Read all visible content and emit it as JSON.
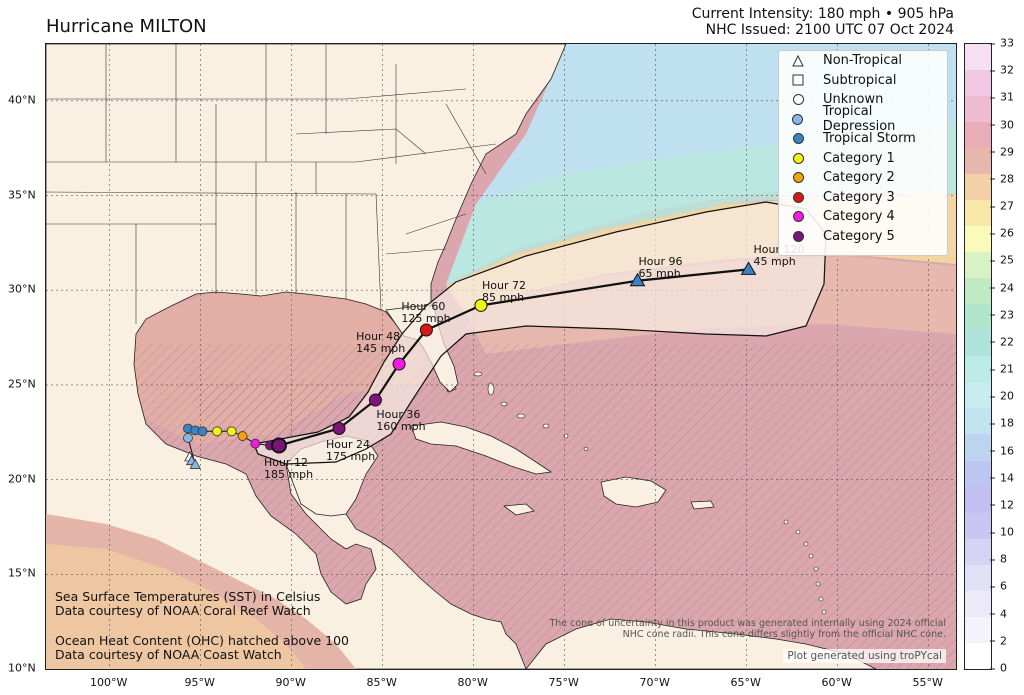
{
  "header": {
    "title": "Hurricane MILTON",
    "intensity": "Current Intensity: 180 mph • 905 hPa",
    "issued": "NHC Issued: 2100 UTC 07 Oct 2024"
  },
  "axes": {
    "lat_labels": [
      "40°N",
      "35°N",
      "30°N",
      "25°N",
      "20°N",
      "15°N",
      "10°N"
    ],
    "lon_labels": [
      "100°W",
      "95°W",
      "90°W",
      "85°W",
      "80°W",
      "75°W",
      "70°W",
      "65°W",
      "60°W",
      "55°W"
    ]
  },
  "colorbar": {
    "ticks": [
      "33",
      "32",
      "31",
      "30",
      "29",
      "28",
      "27",
      "26",
      "25",
      "24",
      "23",
      "22",
      "21",
      "20",
      "18",
      "16",
      "14",
      "12",
      "10",
      "8",
      "6",
      "4",
      "2",
      "0"
    ],
    "colors": [
      "#f6dff2",
      "#f2c9e4",
      "#eebcd0",
      "#e9adb8",
      "#e6b7ac",
      "#f3d0a5",
      "#f7e8a8",
      "#fafbb8",
      "#d9f2c4",
      "#bfeac4",
      "#b2e6cc",
      "#aee4dc",
      "#bdece8",
      "#c8ecf0",
      "#c2e4f1",
      "#bcd4f0",
      "#bcc6f0",
      "#c3bff0",
      "#c9c7f2",
      "#d6d4f5",
      "#e2e0f7",
      "#eceaf8",
      "#f4f3fb",
      "#ffffff"
    ]
  },
  "legend": {
    "items": [
      {
        "label": "Non-Tropical",
        "mark": "triangle",
        "color": "#ffffff"
      },
      {
        "label": "Subtropical",
        "mark": "square",
        "color": "#ffffff"
      },
      {
        "label": "Unknown",
        "mark": "circle",
        "color": "#ffffff"
      },
      {
        "label": "Tropical Depression",
        "mark": "circle",
        "color": "#89b7e3"
      },
      {
        "label": "Tropical Storm",
        "mark": "circle",
        "color": "#3b82c4"
      },
      {
        "label": "Category 1",
        "mark": "circle",
        "color": "#f3f315"
      },
      {
        "label": "Category 2",
        "mark": "circle",
        "color": "#f1a20d"
      },
      {
        "label": "Category 3",
        "mark": "circle",
        "color": "#d91a14"
      },
      {
        "label": "Category 4",
        "mark": "circle",
        "color": "#f21ae3"
      },
      {
        "label": "Category 5",
        "mark": "circle",
        "color": "#7d1479"
      }
    ]
  },
  "forecast": [
    {
      "hour": "Hour 12",
      "wind": "185 mph",
      "color": "#7d1479",
      "shape": "circle",
      "lon": -90.7,
      "lat": 21.8
    },
    {
      "hour": "Hour 24",
      "wind": "175 mph",
      "color": "#7d1479",
      "shape": "circle",
      "lon": -87.4,
      "lat": 22.7
    },
    {
      "hour": "Hour 36",
      "wind": "160 mph",
      "color": "#7d1479",
      "shape": "circle",
      "lon": -85.4,
      "lat": 24.2
    },
    {
      "hour": "Hour 48",
      "wind": "145 mph",
      "color": "#f21ae3",
      "shape": "circle",
      "lon": -84.1,
      "lat": 26.1
    },
    {
      "hour": "Hour 60",
      "wind": "125 mph",
      "color": "#d91a14",
      "shape": "circle",
      "lon": -82.6,
      "lat": 27.9
    },
    {
      "hour": "Hour 72",
      "wind": "85 mph",
      "color": "#f3f315",
      "shape": "circle",
      "lon": -79.6,
      "lat": 29.2
    },
    {
      "hour": "Hour 96",
      "wind": "65 mph",
      "color": "#3b82c4",
      "shape": "triangle",
      "lon": -71.0,
      "lat": 30.5
    },
    {
      "hour": "Hour 120",
      "wind": "45 mph",
      "color": "#3b82c4",
      "shape": "triangle",
      "lon": -64.9,
      "lat": 31.1
    }
  ],
  "credits": {
    "sst1": "Sea Surface Temperatures (SST) in Celsius",
    "sst2": "Data courtesy of NOAA Coral Reef Watch",
    "ohc1": "Ocean Heat Content (OHC) hatched above 100",
    "ohc2": "Data courtesy of NOAA Coast Watch",
    "disclaimer1": "The cone of uncertainty in this product was generated internally using 2024 official",
    "disclaimer2": "NHC cone radii. This cone differs slightly from the official NHC cone.",
    "tropycal": "Plot generated using troPYcal"
  }
}
